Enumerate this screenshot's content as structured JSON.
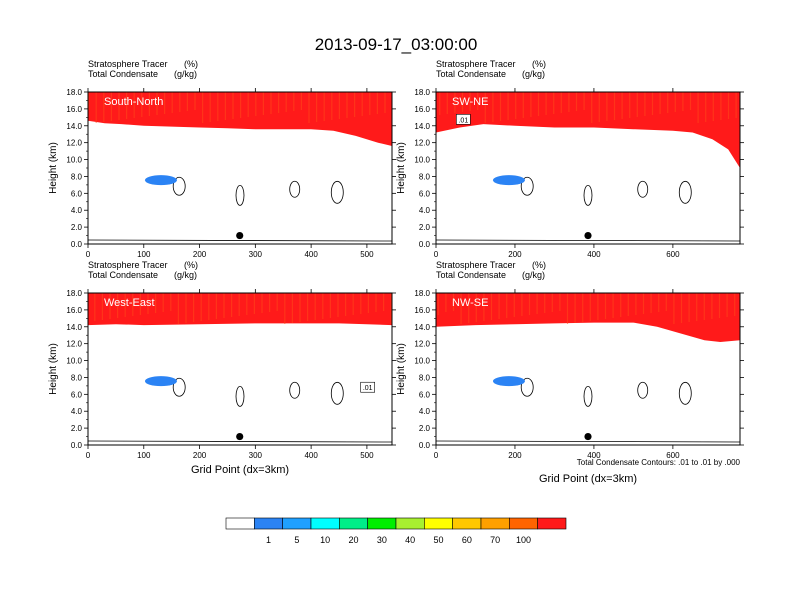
{
  "title": "2013-09-17_03:00:00",
  "colors": {
    "levels": [
      "#ffffff",
      "#2b83f4",
      "#1fa0ff",
      "#00ffff",
      "#00ee88",
      "#00ee00",
      "#a8f030",
      "#ffff00",
      "#ffc800",
      "#ffa000",
      "#ff6400",
      "#ff1a1a"
    ]
  },
  "chart_data": [
    {
      "type": "contour",
      "panel_label": "South-North",
      "field_left": "Stratosphere Tracer",
      "field_right": "(%)",
      "field2_left": "Total Condensate",
      "field2_right": "(g/kg)",
      "ylabel": "Height (km)",
      "xlabel": "",
      "xlim": [
        0,
        545
      ],
      "ylim": [
        0,
        18
      ],
      "xticks": [
        0,
        100,
        200,
        300,
        400,
        500
      ],
      "yticks": [
        "0.0",
        "2.0",
        "4.0",
        "6.0",
        "8.0",
        "10.0",
        "12.0",
        "14.0",
        "16.0",
        "18.0"
      ],
      "marker_x": 272,
      "marker_y": 1.0,
      "band_base": [
        [
          0,
          14.6
        ],
        [
          30,
          14.3
        ],
        [
          60,
          14.2
        ],
        [
          100,
          14.0
        ],
        [
          150,
          13.9
        ],
        [
          200,
          13.8
        ],
        [
          250,
          13.7
        ],
        [
          300,
          13.6
        ],
        [
          350,
          13.6
        ],
        [
          400,
          13.6
        ],
        [
          440,
          13.4
        ],
        [
          480,
          12.8
        ],
        [
          520,
          12.0
        ],
        [
          545,
          11.6
        ]
      ],
      "box_label": null,
      "note": null
    },
    {
      "type": "contour",
      "panel_label": "SW-NE",
      "field_left": "Stratosphere Tracer",
      "field_right": "(%)",
      "field2_left": "Total Condensate",
      "field2_right": "(g/kg)",
      "ylabel": "Height (km)",
      "xlabel": "",
      "xlim": [
        0,
        770
      ],
      "ylim": [
        0,
        18
      ],
      "xticks": [
        0,
        200,
        400,
        600
      ],
      "yticks": [
        "0.0",
        "2.0",
        "4.0",
        "6.0",
        "8.0",
        "10.0",
        "12.0",
        "14.0",
        "16.0",
        "18.0"
      ],
      "marker_x": 385,
      "marker_y": 1.0,
      "band_base": [
        [
          0,
          13.2
        ],
        [
          60,
          13.8
        ],
        [
          120,
          14.2
        ],
        [
          200,
          14.0
        ],
        [
          300,
          13.8
        ],
        [
          400,
          13.8
        ],
        [
          500,
          13.6
        ],
        [
          600,
          13.4
        ],
        [
          650,
          13.2
        ],
        [
          700,
          12.4
        ],
        [
          740,
          11.2
        ],
        [
          770,
          9.0
        ]
      ],
      "box_label": ".01",
      "note": null
    },
    {
      "type": "contour",
      "panel_label": "West-East",
      "field_left": "Stratosphere Tracer",
      "field_right": "(%)",
      "field2_left": "Total Condensate",
      "field2_right": "(g/kg)",
      "ylabel": "Height (km)",
      "xlabel": "Grid Point (dx=3km)",
      "xlim": [
        0,
        545
      ],
      "ylim": [
        0,
        18
      ],
      "xticks": [
        0,
        100,
        200,
        300,
        400,
        500
      ],
      "yticks": [
        "0.0",
        "2.0",
        "4.0",
        "6.0",
        "8.0",
        "10.0",
        "12.0",
        "14.0",
        "16.0",
        "18.0"
      ],
      "marker_x": 272,
      "marker_y": 1.0,
      "band_base": [
        [
          0,
          14.2
        ],
        [
          50,
          14.3
        ],
        [
          100,
          14.2
        ],
        [
          200,
          14.3
        ],
        [
          300,
          14.4
        ],
        [
          400,
          14.4
        ],
        [
          450,
          14.4
        ],
        [
          500,
          14.3
        ],
        [
          545,
          14.2
        ]
      ],
      "box_label": ".01",
      "note": null
    },
    {
      "type": "contour",
      "panel_label": "NW-SE",
      "field_left": "Stratosphere Tracer",
      "field_right": "(%)",
      "field2_left": "Total Condensate",
      "field2_right": "(g/kg)",
      "ylabel": "Height (km)",
      "xlabel": "Grid Point (dx=3km)",
      "xlim": [
        0,
        770
      ],
      "ylim": [
        0,
        18
      ],
      "xticks": [
        0,
        200,
        400,
        600
      ],
      "yticks": [
        "0.0",
        "2.0",
        "4.0",
        "6.0",
        "8.0",
        "10.0",
        "12.0",
        "14.0",
        "16.0",
        "18.0"
      ],
      "marker_x": 385,
      "marker_y": 1.0,
      "band_base": [
        [
          0,
          14.0
        ],
        [
          100,
          14.2
        ],
        [
          200,
          14.3
        ],
        [
          300,
          14.4
        ],
        [
          400,
          14.5
        ],
        [
          500,
          14.5
        ],
        [
          560,
          14.0
        ],
        [
          620,
          13.2
        ],
        [
          680,
          12.4
        ],
        [
          720,
          12.2
        ],
        [
          770,
          12.4
        ]
      ],
      "box_label": null,
      "note": "Total Condensate Contours: .01 to .01 by .000"
    }
  ],
  "colorbar": {
    "labels": [
      "1",
      "5",
      "10",
      "20",
      "30",
      "40",
      "50",
      "60",
      "70",
      "100"
    ]
  }
}
